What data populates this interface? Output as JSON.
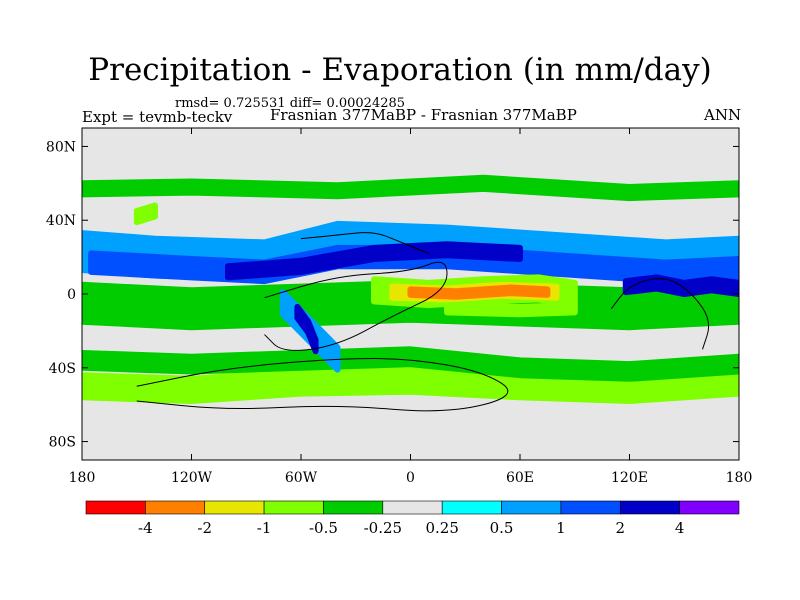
{
  "chart_data": {
    "type": "heatmap",
    "title": "Precipitation - Evaporation (in mm/day)",
    "subtitle": "rmsd= 0.725531 diff= 0.00024285",
    "left_label": "Expt = tevmb-teckv",
    "center_label": "Frasnian 377MaBP - Frasnian 377MaBP",
    "right_label": "ANN",
    "x_axis": {
      "range": [
        -180,
        180
      ],
      "ticks": [
        -180,
        -120,
        -60,
        0,
        60,
        120,
        180
      ],
      "tick_labels": [
        "180",
        "120W",
        "60W",
        "0",
        "60E",
        "120E",
        "180"
      ]
    },
    "y_axis": {
      "range": [
        -90,
        90
      ],
      "ticks": [
        80,
        40,
        0,
        -40,
        -80
      ],
      "tick_labels": [
        "80N",
        "40N",
        "0",
        "40S",
        "80S"
      ]
    },
    "colorbar": {
      "colors": [
        "#ff0000",
        "#ff8000",
        "#e6e600",
        "#80ff00",
        "#00cc00",
        "#e6e6e6",
        "#00ffff",
        "#00a0ff",
        "#0050ff",
        "#0000c8",
        "#8000ff"
      ],
      "labels": [
        "-4",
        "-2",
        "-1",
        "-0.5",
        "-0.25",
        "0.25",
        "0.5",
        "1",
        "2",
        "4"
      ],
      "levels": [
        -4,
        -2,
        -1,
        -0.5,
        -0.25,
        0.25,
        0.5,
        1,
        2,
        4
      ]
    },
    "field_regions": [
      {
        "level": "-0.25",
        "lons": [
          -180,
          -120,
          -60,
          0,
          60,
          120,
          180
        ],
        "lats": [
          -5,
          -8,
          -6,
          -4,
          -6,
          -8,
          -5
        ],
        "half_width": 10
      },
      {
        "level": "0.5",
        "lons": [
          -180,
          -140,
          -80,
          -40,
          20,
          80,
          140,
          180
        ],
        "lats": [
          23,
          20,
          18,
          28,
          26,
          22,
          18,
          20
        ],
        "half_width": 10
      },
      {
        "level": "1",
        "lons": [
          -175,
          -120,
          -80,
          -40,
          20,
          80,
          140,
          180
        ],
        "lats": [
          17,
          14,
          12,
          20,
          20,
          16,
          12,
          14
        ],
        "half_width": 5
      },
      {
        "level": "2",
        "lons": [
          -100,
          -60,
          -20,
          20,
          60
        ],
        "lats": [
          12,
          15,
          22,
          24,
          22
        ],
        "half_width": 3
      },
      {
        "level": "-0.5",
        "lons": [
          -20,
          10,
          40,
          70,
          90
        ],
        "lats": [
          2,
          0,
          2,
          3,
          0
        ],
        "half_width": 6
      },
      {
        "level": "-1",
        "lons": [
          -10,
          20,
          50,
          80
        ],
        "lats": [
          1,
          0,
          2,
          1
        ],
        "half_width": 3
      },
      {
        "level": "-2",
        "lons": [
          0,
          25,
          55,
          75
        ],
        "lats": [
          1,
          0,
          2,
          1
        ],
        "half_width": 1.5
      },
      {
        "level": "2",
        "lons": [
          118,
          135,
          150,
          165,
          180
        ],
        "lats": [
          4,
          6,
          3,
          5,
          3
        ],
        "half_width": 3
      },
      {
        "level": "-0.5",
        "lons": [
          20,
          60,
          90
        ],
        "lats": [
          -8,
          -9,
          -8
        ],
        "half_width": 2
      },
      {
        "level": "-0.5",
        "lons": [
          -180,
          -120,
          -60,
          0,
          60,
          120,
          180
        ],
        "lats": [
          -50,
          -52,
          -48,
          -47,
          -50,
          -52,
          -48
        ],
        "half_width": 6
      },
      {
        "level": "-0.25",
        "lons": [
          -180,
          -120,
          -60,
          0,
          60,
          120,
          180
        ],
        "lats": [
          -36,
          -38,
          -36,
          -34,
          -40,
          -42,
          -38
        ],
        "half_width": 4
      },
      {
        "level": "0.5",
        "lons": [
          -70,
          -60,
          -50,
          -40
        ],
        "lats": [
          -5,
          -15,
          -25,
          -35
        ],
        "half_width": 6
      },
      {
        "level": "2",
        "lons": [
          -62,
          -56,
          -52
        ],
        "lats": [
          -10,
          -18,
          -28
        ],
        "half_width": 3
      },
      {
        "level": "-0.25",
        "lons": [
          -180,
          -120,
          -40,
          40,
          120,
          180
        ],
        "lats": [
          57,
          58,
          56,
          60,
          55,
          57
        ],
        "half_width": 3
      },
      {
        "level": "-0.5",
        "lons": [
          -150,
          -140
        ],
        "lats": [
          42,
          45
        ],
        "half_width": 3
      }
    ],
    "coastlines": [
      {
        "name": "north-island-chain",
        "lons": [
          -60,
          -40,
          -20,
          -5,
          10
        ],
        "lats": [
          30,
          32,
          34,
          28,
          22
        ]
      },
      {
        "name": "central-continent",
        "lons": [
          -80,
          -40,
          0,
          20,
          20,
          -10,
          -40,
          -70,
          -80
        ],
        "lats": [
          -2,
          10,
          12,
          20,
          2,
          -12,
          -28,
          -32,
          -22
        ]
      },
      {
        "name": "southern-continent",
        "lons": [
          -150,
          -100,
          -40,
          0,
          40,
          60,
          20,
          -40,
          -100,
          -150
        ],
        "lats": [
          -50,
          -40,
          -35,
          -35,
          -42,
          -55,
          -65,
          -60,
          -63,
          -58
        ]
      },
      {
        "name": "eastern-landmass",
        "lons": [
          110,
          120,
          140,
          155,
          165,
          160
        ],
        "lats": [
          -8,
          5,
          10,
          0,
          -15,
          -30
        ]
      }
    ]
  }
}
